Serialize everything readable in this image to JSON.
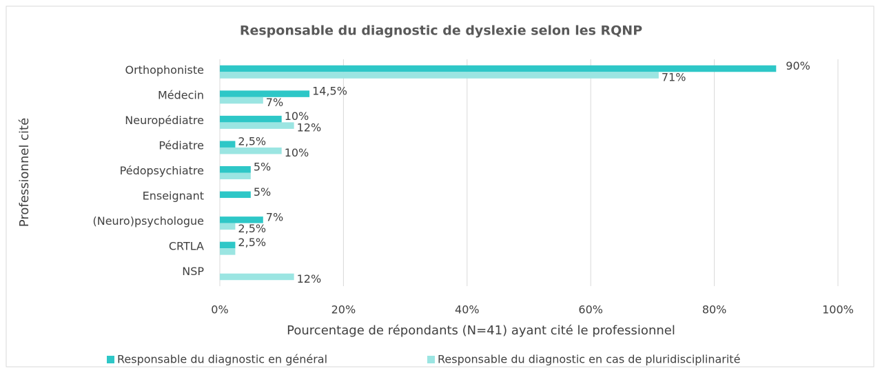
{
  "chart_data": {
    "type": "bar",
    "orientation": "horizontal",
    "title": "Responsable du diagnostic de dyslexie selon les RQNP",
    "x_label": "Pourcentage de répondants (N=41) ayant cité le professionnel",
    "y_label": "Professionnel cité",
    "categories": [
      "Orthophoniste",
      "Médecin",
      "Neuropédiatre",
      "Pédiatre",
      "Pédopsychiatre",
      "Enseignant",
      "(Neuro)psychologue",
      "CRTLA",
      "NSP"
    ],
    "series": [
      {
        "name": "Responsable du diagnostic en général",
        "color": "#2ec7c7",
        "values": [
          90,
          14.5,
          10,
          2.5,
          5,
          5,
          7,
          2.5,
          null
        ],
        "value_labels": [
          "90%",
          "14,5%",
          "10%",
          "2,5%",
          "5%",
          "5%",
          "7%",
          "2,5%",
          null
        ]
      },
      {
        "name": "Responsable du diagnostic en cas de pluridisciplinarité",
        "color": "#9be5e2",
        "values": [
          71,
          7,
          12,
          10,
          5,
          null,
          2.5,
          2.5,
          12
        ],
        "value_labels": [
          "71%",
          "7%",
          "12%",
          "10%",
          null,
          null,
          "2,5%",
          null,
          "12%"
        ]
      }
    ],
    "xlim": [
      0,
      100
    ],
    "xticks": [
      {
        "value": 0,
        "label": "0%"
      },
      {
        "value": 20,
        "label": "20%"
      },
      {
        "value": 40,
        "label": "40%"
      },
      {
        "value": 60,
        "label": "60%"
      },
      {
        "value": 80,
        "label": "80%"
      },
      {
        "value": 100,
        "label": "100%"
      }
    ],
    "grid": true,
    "legend": "bottom"
  }
}
